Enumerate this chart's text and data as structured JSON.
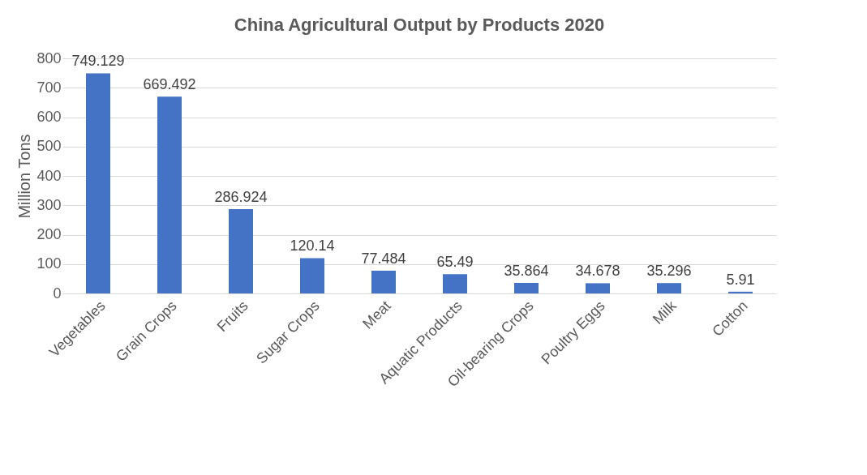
{
  "chart_data": {
    "type": "bar",
    "title": "China Agricultural Output by Products 2020",
    "ylabel": "Million Tons",
    "categories": [
      "Vegetables",
      "Grain Crops",
      "Fruits",
      "Sugar Crops",
      "Meat",
      "Aquatic Products",
      "Oil-bearing Crops",
      "Poultry Eggs",
      "Milk",
      "Cotton"
    ],
    "values": [
      749.129,
      669.492,
      286.924,
      120.14,
      77.484,
      65.49,
      35.864,
      34.678,
      35.296,
      5.91
    ],
    "color": "#4472c4",
    "ylim": [
      0,
      800
    ],
    "yticks": [
      0,
      100,
      200,
      300,
      400,
      500,
      600,
      700,
      800
    ],
    "grid": "y",
    "data_labels": true
  }
}
